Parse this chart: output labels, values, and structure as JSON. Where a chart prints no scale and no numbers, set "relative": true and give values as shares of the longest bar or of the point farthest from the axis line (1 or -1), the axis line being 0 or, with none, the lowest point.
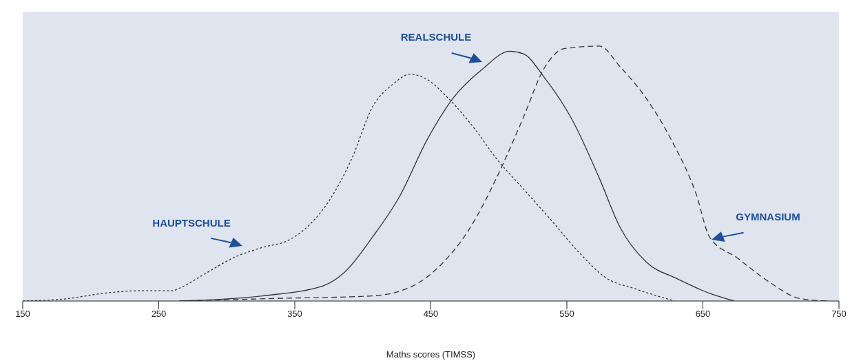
{
  "chart_data": {
    "type": "line",
    "relative": true,
    "xlabel": "Maths scores (TIMSS)",
    "xlim": [
      150,
      750
    ],
    "xticks": [
      150,
      250,
      350,
      450,
      550,
      650,
      750
    ],
    "series": [
      {
        "color": "#333333",
        "line_style": "dotted",
        "x": [
          150,
          184,
          209,
          235,
          260,
          265,
          285,
          305,
          326,
          346,
          361,
          376,
          392,
          407,
          422,
          435,
          447,
          462,
          483,
          498,
          518,
          538,
          559,
          579,
          599,
          629
        ],
        "values": [
          0,
          0.01,
          0.03,
          0.04,
          0.04,
          0.05,
          0.11,
          0.17,
          0.21,
          0.24,
          0.3,
          0.4,
          0.56,
          0.76,
          0.85,
          0.89,
          0.87,
          0.8,
          0.67,
          0.56,
          0.44,
          0.32,
          0.19,
          0.09,
          0.05,
          0
        ]
      },
      {
        "color": "#333333",
        "line_style": "solid",
        "x": [
          265,
          326,
          371,
          386,
          407,
          427,
          447,
          467,
          488,
          508,
          518,
          533,
          554,
          574,
          589,
          609,
          630,
          655,
          673
        ],
        "values": [
          0,
          0.02,
          0.06,
          0.11,
          0.25,
          0.41,
          0.63,
          0.8,
          0.91,
          0.98,
          0.97,
          0.88,
          0.71,
          0.48,
          0.29,
          0.15,
          0.09,
          0.03,
          0
        ]
      },
      {
        "color": "#333333",
        "line_style": "dashed",
        "x": [
          265,
          336,
          407,
          437,
          457,
          478,
          498,
          518,
          533,
          548,
          574,
          589,
          609,
          627,
          645,
          655,
          675,
          700,
          721,
          741
        ],
        "values": [
          0,
          0.01,
          0.02,
          0.06,
          0.14,
          0.28,
          0.48,
          0.72,
          0.91,
          0.99,
          1,
          0.92,
          0.79,
          0.63,
          0.42,
          0.25,
          0.17,
          0.07,
          0.01,
          0
        ]
      }
    ],
    "annotations": [
      "HAUPTSCHULE",
      "REALSCHULE",
      "GYMNASIUM"
    ]
  }
}
